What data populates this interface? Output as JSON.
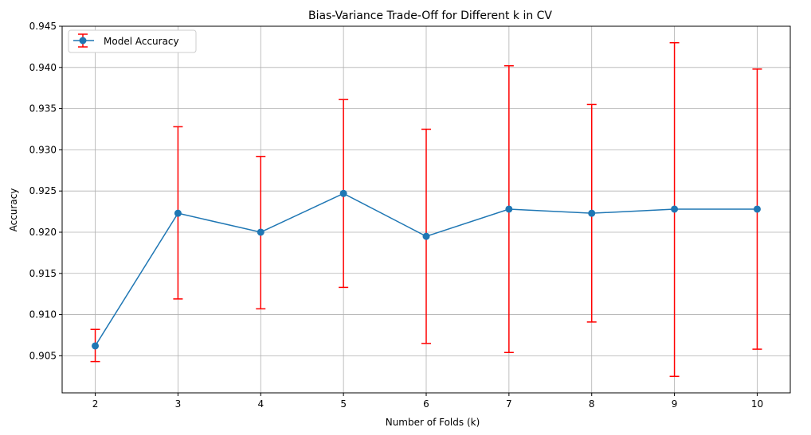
{
  "chart_data": {
    "type": "line",
    "title": "Bias-Variance Trade-Off for Different k in CV",
    "xlabel": "Number of Folds (k)",
    "ylabel": "Accuracy",
    "x": [
      2,
      3,
      4,
      5,
      6,
      7,
      8,
      9,
      10
    ],
    "xlim": [
      1.6,
      10.4
    ],
    "ylim": [
      0.9005,
      0.945
    ],
    "yticks": [
      0.905,
      0.91,
      0.915,
      0.92,
      0.925,
      0.93,
      0.935,
      0.94,
      0.945
    ],
    "ytick_labels": [
      "0.905",
      "0.910",
      "0.915",
      "0.920",
      "0.925",
      "0.930",
      "0.935",
      "0.940",
      "0.945"
    ],
    "xtick_labels": [
      "2",
      "3",
      "4",
      "5",
      "6",
      "7",
      "8",
      "9",
      "10"
    ],
    "grid": true,
    "legend_position": "top-left",
    "series": [
      {
        "name": "Model Accuracy",
        "values": [
          0.9062,
          0.9223,
          0.92,
          0.9247,
          0.9195,
          0.9228,
          0.9223,
          0.9228,
          0.9228
        ],
        "error_low": [
          0.9043,
          0.9119,
          0.9107,
          0.9133,
          0.9065,
          0.9054,
          0.9091,
          0.9025,
          0.9058
        ],
        "error_high": [
          0.9082,
          0.9328,
          0.9292,
          0.9361,
          0.9325,
          0.9402,
          0.9355,
          0.943,
          0.9398
        ],
        "line_color": "#1f77b4",
        "error_color": "#ff0000"
      }
    ]
  }
}
